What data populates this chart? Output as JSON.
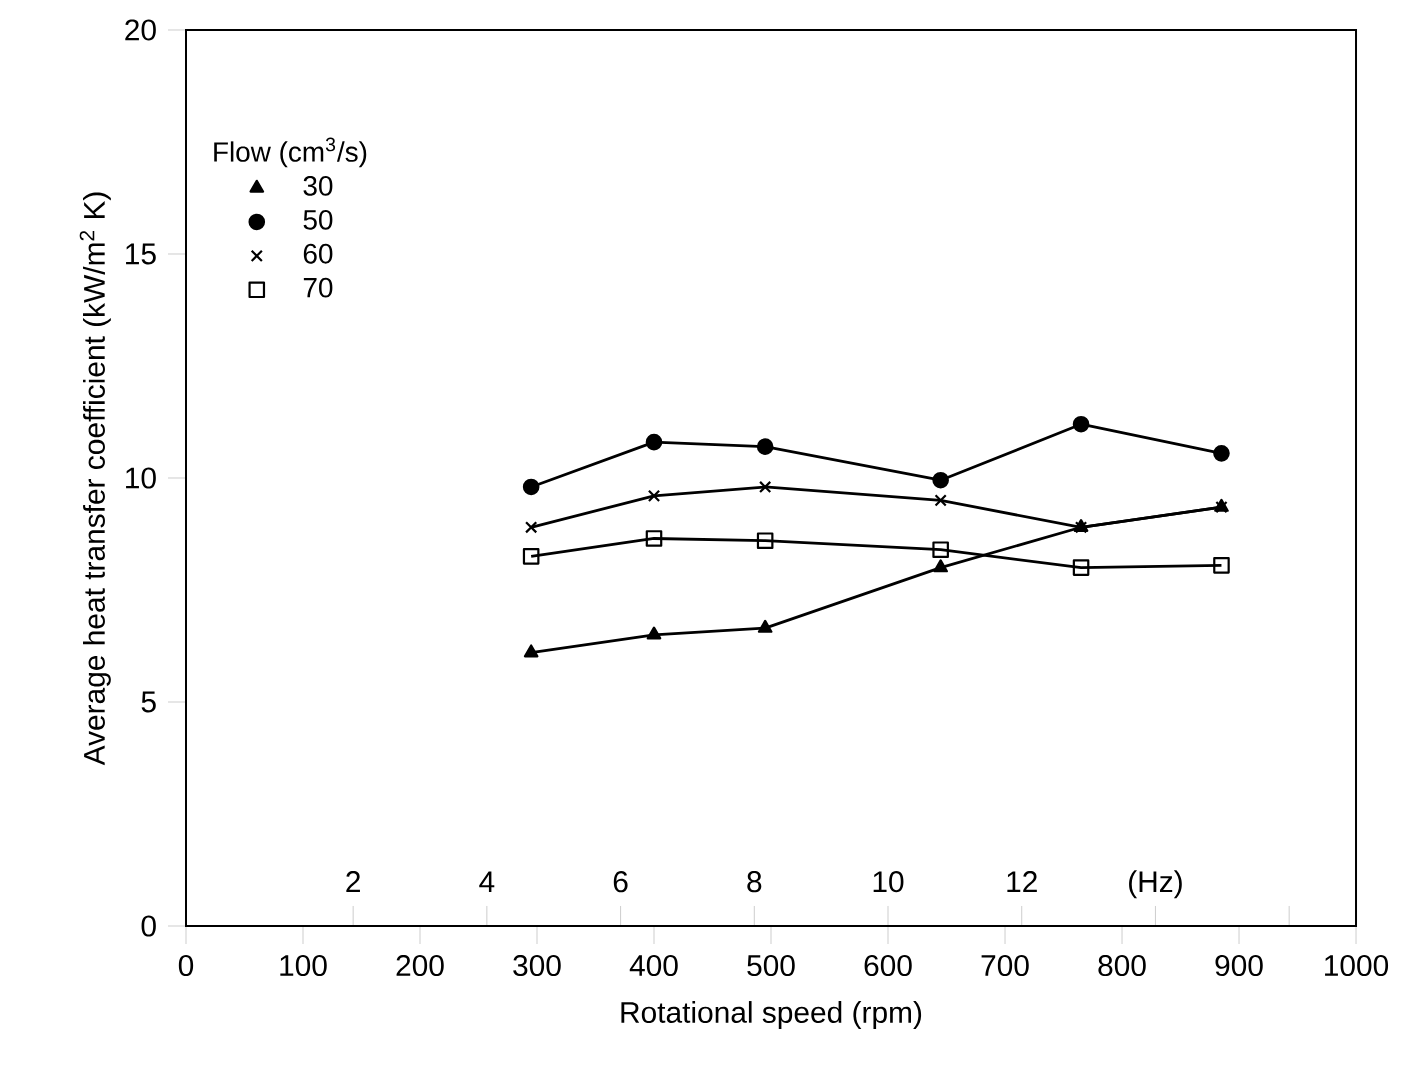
{
  "chart_data": {
    "type": "line",
    "xlabel": "Rotational speed (rpm)",
    "ylabel": "Average heat transfer coefficient (kW/m$^{2}$ K)",
    "legend_title": "Flow (cm$^{3}$/s)",
    "x": [
      295,
      400,
      495,
      645,
      765,
      885
    ],
    "series": [
      {
        "name": "30",
        "color": "#000000",
        "marker": "triangle",
        "values": [
          6.1,
          6.5,
          6.65,
          8.0,
          8.9,
          9.35
        ]
      },
      {
        "name": "50",
        "color": "#000000",
        "marker": "circle",
        "values": [
          9.8,
          10.8,
          10.7,
          9.95,
          11.2,
          10.55
        ]
      },
      {
        "name": "60",
        "color": "#000000",
        "marker": "cross",
        "values": [
          8.9,
          9.6,
          9.8,
          9.5,
          8.9,
          9.35
        ]
      },
      {
        "name": "70",
        "color": "#000000",
        "marker": "square",
        "values": [
          8.25,
          8.65,
          8.6,
          8.4,
          8.0,
          8.05
        ]
      }
    ],
    "xlim": [
      0,
      1000
    ],
    "xticks": [
      0,
      100,
      200,
      300,
      400,
      500,
      600,
      700,
      800,
      900,
      1000
    ],
    "ylim": [
      0,
      20
    ],
    "yticks": [
      0,
      5,
      10,
      15,
      20
    ],
    "x2lim": [
      -0.5,
      17
    ],
    "x2ticks": [
      2,
      4,
      6,
      8,
      10,
      12,
      {
        "value": 14,
        "label": "(Hz)"
      },
      {
        "value": 16,
        "label": null
      }
    ],
    "legend": "top left",
    "grid": false,
    "line_style": "solid"
  }
}
